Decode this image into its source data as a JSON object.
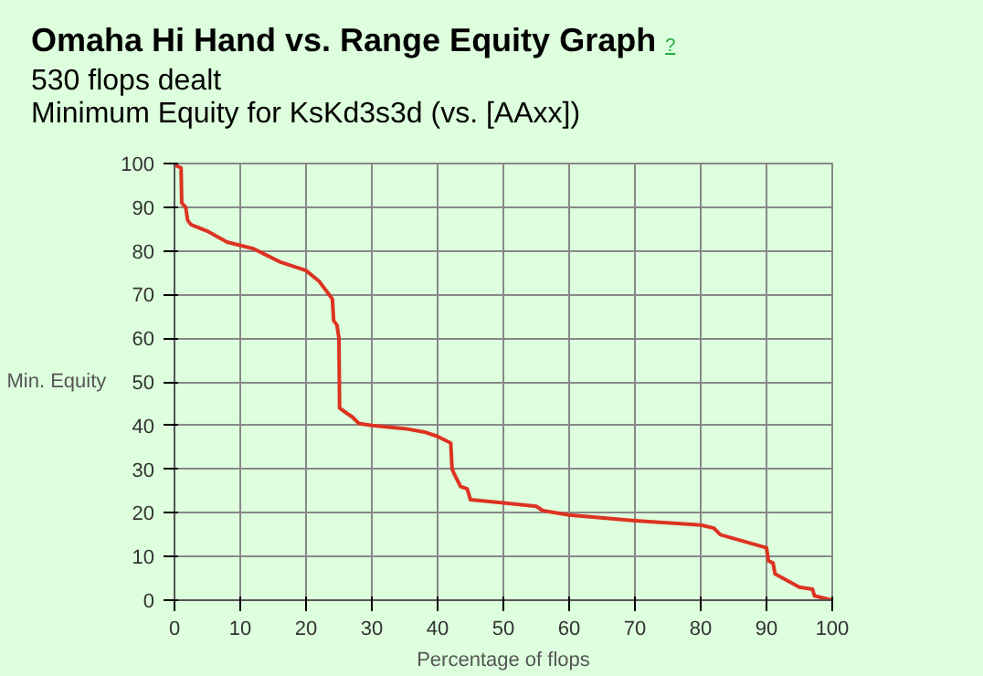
{
  "chart_data": {
    "type": "line",
    "title": "Omaha Hi Hand vs. Range Equity Graph",
    "subtitle": "530 flops dealt\nMinimum Equity for KsKd3s3d (vs. [AAxx])",
    "annotations": [
      "?"
    ],
    "xlabel": "Percentage of flops",
    "ylabel": "Min. Equity",
    "x": [
      0,
      0.3,
      1,
      1.1,
      1.7,
      2,
      2.5,
      5,
      8,
      12,
      14,
      16,
      20,
      22,
      23,
      24,
      24.2,
      24.7,
      25,
      25.1,
      26,
      27,
      28,
      30,
      35,
      38,
      40,
      42,
      42.2,
      42.5,
      43,
      43.5,
      44.5,
      45,
      50,
      55,
      56,
      60,
      70,
      80,
      82,
      83,
      90,
      90.3,
      91,
      91.3,
      95,
      97,
      97.3,
      100
    ],
    "series": [
      {
        "color": "#dd3322",
        "values": [
          100,
          99.5,
          99,
          91,
          90,
          87,
          86,
          84.5,
          82,
          80.5,
          79,
          77.5,
          75.5,
          73,
          71,
          69,
          64,
          63,
          60,
          44,
          43,
          42,
          40.5,
          40,
          39.3,
          38.5,
          37.5,
          36,
          30,
          29,
          27.5,
          26,
          25.5,
          23,
          22.3,
          21.5,
          20.5,
          19.5,
          18.2,
          17.2,
          16.5,
          15,
          12,
          9,
          8.5,
          6,
          3,
          2.5,
          1,
          0
        ]
      }
    ],
    "xlim": [
      0,
      100
    ],
    "ylim": [
      0,
      100
    ],
    "xticks": [
      0,
      10,
      20,
      30,
      40,
      50,
      60,
      70,
      80,
      90,
      100
    ],
    "yticks": [
      0,
      10,
      20,
      30,
      40,
      50,
      60,
      70,
      80,
      90,
      100
    ],
    "grid": true,
    "marker": "none",
    "line_style": "solid"
  }
}
